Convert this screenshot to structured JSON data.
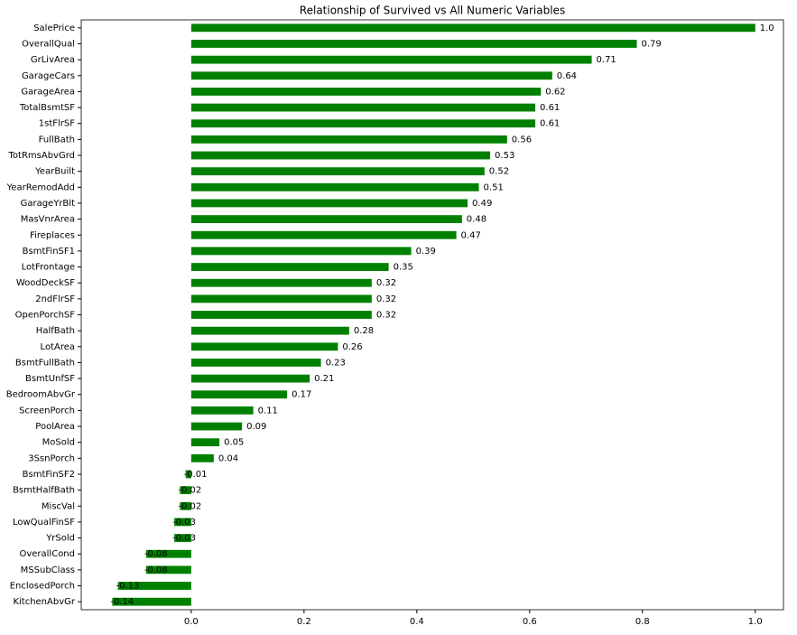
{
  "chart_data": {
    "type": "barh",
    "title": "Relationship of Survived vs All Numeric Variables",
    "categories": [
      "SalePrice",
      "OverallQual",
      "GrLivArea",
      "GarageCars",
      "GarageArea",
      "TotalBsmtSF",
      "1stFlrSF",
      "FullBath",
      "TotRmsAbvGrd",
      "YearBuilt",
      "YearRemodAdd",
      "GarageYrBlt",
      "MasVnrArea",
      "Fireplaces",
      "BsmtFinSF1",
      "LotFrontage",
      "WoodDeckSF",
      "2ndFlrSF",
      "OpenPorchSF",
      "HalfBath",
      "LotArea",
      "BsmtFullBath",
      "BsmtUnfSF",
      "BedroomAbvGr",
      "ScreenPorch",
      "PoolArea",
      "MoSold",
      "3SsnPorch",
      "BsmtFinSF2",
      "BsmtHalfBath",
      "MiscVal",
      "LowQualFinSF",
      "YrSold",
      "OverallCond",
      "MSSubClass",
      "EnclosedPorch",
      "KitchenAbvGr"
    ],
    "values": [
      1.0,
      0.79,
      0.71,
      0.64,
      0.62,
      0.61,
      0.61,
      0.56,
      0.53,
      0.52,
      0.51,
      0.49,
      0.48,
      0.47,
      0.39,
      0.35,
      0.32,
      0.32,
      0.32,
      0.28,
      0.26,
      0.23,
      0.21,
      0.17,
      0.11,
      0.09,
      0.05,
      0.04,
      -0.01,
      -0.02,
      -0.02,
      -0.03,
      -0.03,
      -0.08,
      -0.08,
      -0.13,
      -0.14
    ],
    "value_labels": [
      "1.0",
      "0.79",
      "0.71",
      "0.64",
      "0.62",
      "0.61",
      "0.61",
      "0.56",
      "0.53",
      "0.52",
      "0.51",
      "0.49",
      "0.48",
      "0.47",
      "0.39",
      "0.35",
      "0.32",
      "0.32",
      "0.32",
      "0.28",
      "0.26",
      "0.23",
      "0.21",
      "0.17",
      "0.11",
      "0.09",
      "0.05",
      "0.04",
      "-0.01",
      "-0.02",
      "-0.02",
      "-0.03",
      "-0.03",
      "-0.08",
      "-0.08",
      "-0.13",
      "-0.14"
    ],
    "color": "#008000",
    "xlim": [
      -0.195,
      1.05
    ],
    "xticks": [
      {
        "value": 0,
        "label": "0.0"
      },
      0.2,
      0.4,
      0.6,
      0.8,
      {
        "value": 1,
        "label": "1.0"
      }
    ]
  }
}
